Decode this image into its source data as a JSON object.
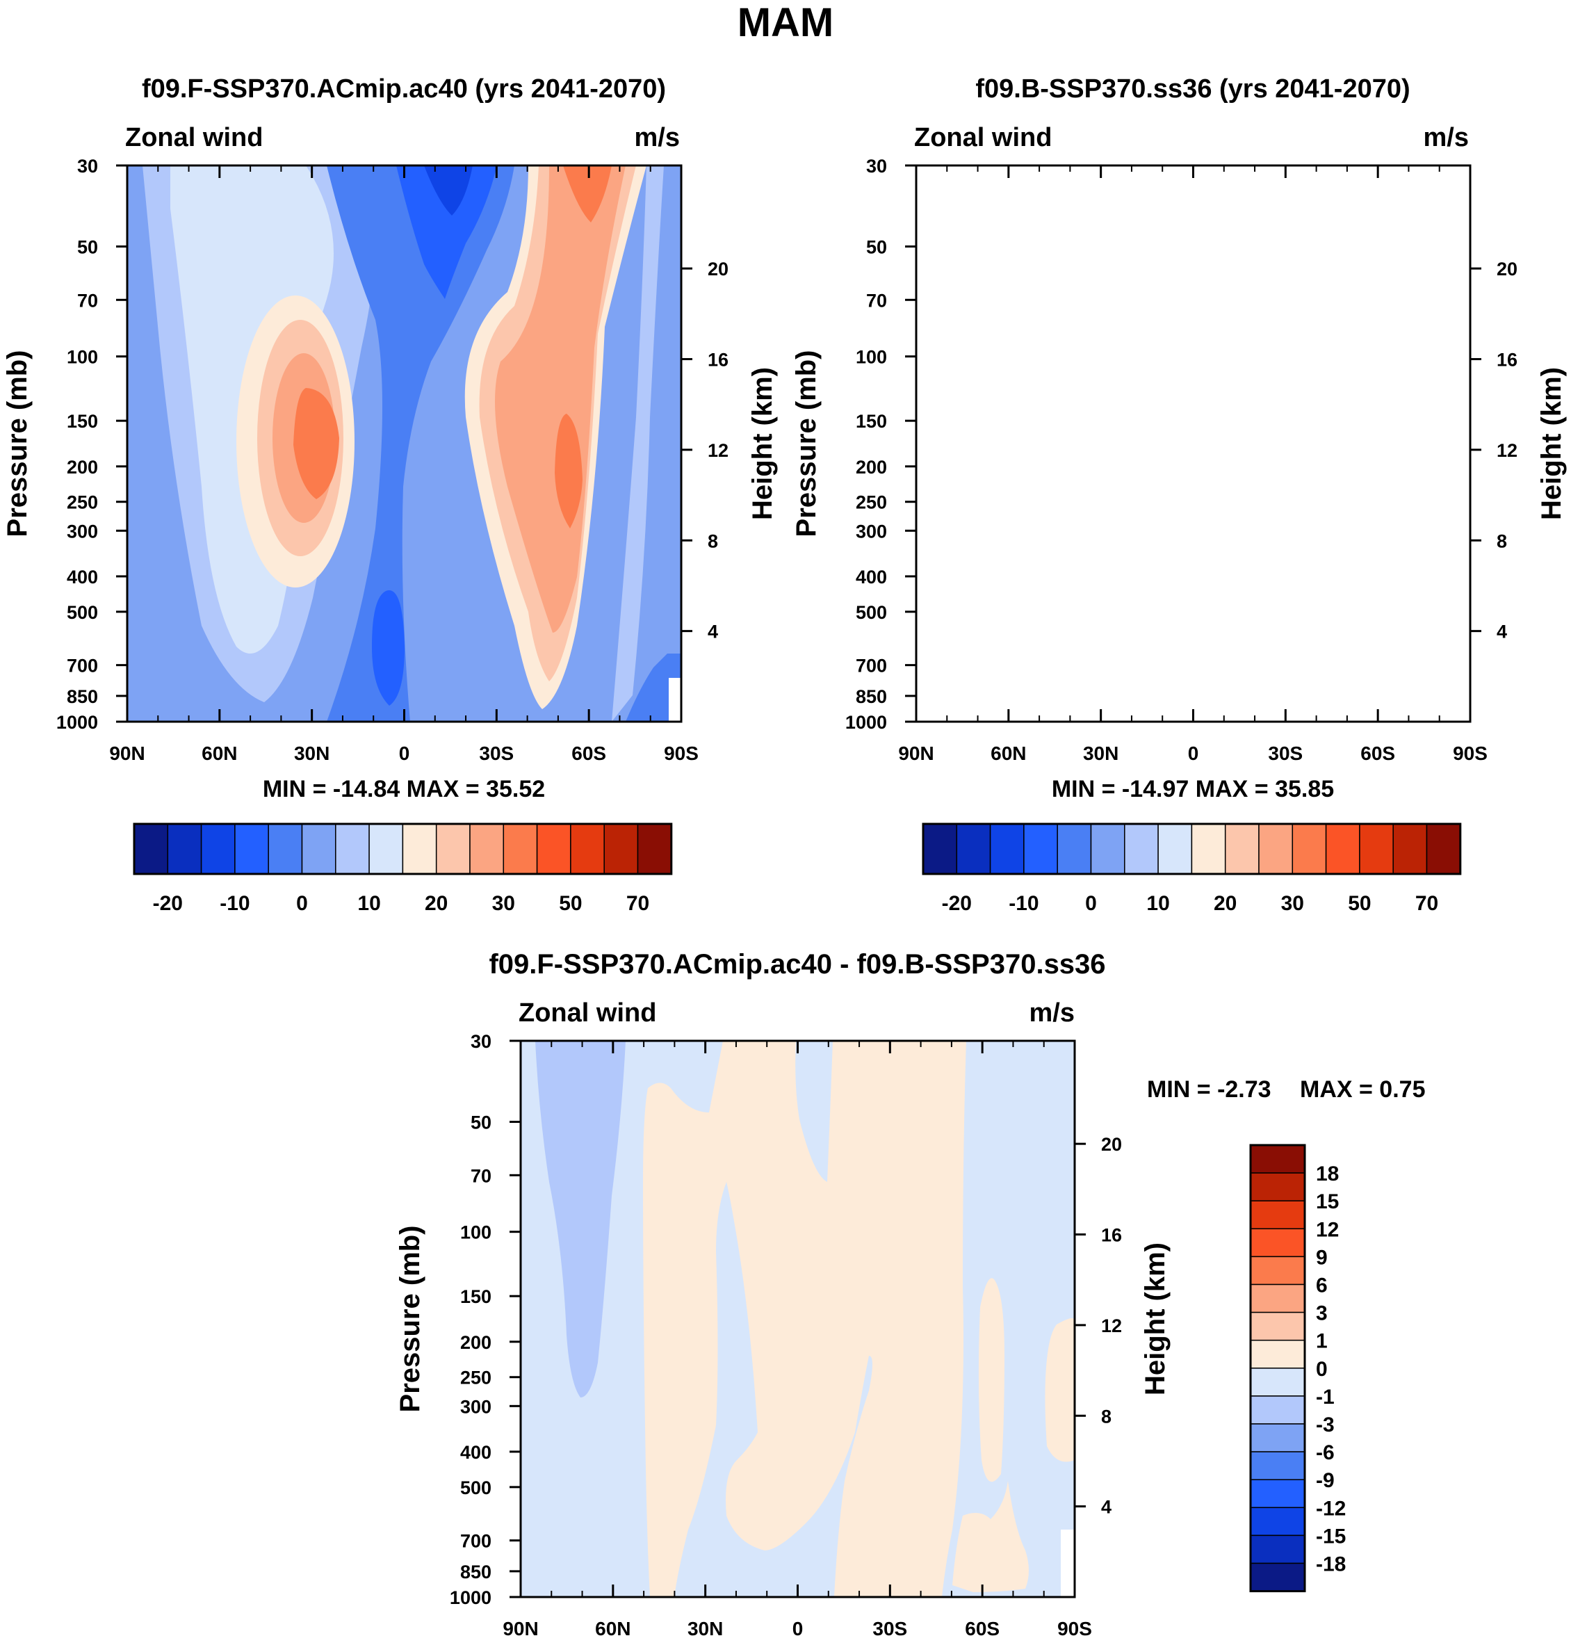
{
  "figure_title": "MAM",
  "colors": {
    "wind_palette": [
      "#0b1a86",
      "#0a2fbf",
      "#0f44e6",
      "#2360ff",
      "#4a7ff4",
      "#7ea3f4",
      "#b2c8fb",
      "#d7e6fb",
      "#fdebd9",
      "#fcc6ac",
      "#fba582",
      "#fb7b4c",
      "#fb5426",
      "#e53b10",
      "#bb2305",
      "#8a0e04"
    ],
    "diff_palette": [
      "#0b1a86",
      "#0a2fbf",
      "#0f44e6",
      "#2360ff",
      "#4a7ff4",
      "#7ea3f4",
      "#b2c8fb",
      "#d7e6fb",
      "#fdebd9",
      "#fcc6ac",
      "#fba582",
      "#fb7b4c",
      "#fb5426",
      "#e53b10",
      "#bb2305",
      "#8a0e04"
    ]
  },
  "chart_data": [
    {
      "type": "contour",
      "title": "f09.F-SSP370.ACmip.ac40 (yrs 2041-2070)",
      "left_label": "Zonal wind",
      "right_label": "m/s",
      "ylabel": "Pressure (mb)",
      "ylabel_right": "Height (km)",
      "x_ticks": [
        "90N",
        "60N",
        "30N",
        "0",
        "30S",
        "60S",
        "90S"
      ],
      "y_ticks": [
        "30",
        "50",
        "70",
        "100",
        "150",
        "200",
        "250",
        "300",
        "400",
        "500",
        "700",
        "850",
        "1000"
      ],
      "y_right_ticks": [
        "20",
        "16",
        "12",
        "8",
        "4"
      ],
      "ylim": [
        1000,
        30
      ],
      "stats": {
        "min": "MIN = -14.84",
        "max": "MAX =  35.52"
      },
      "colorbar_labels": [
        "-20",
        "-10",
        "0",
        "10",
        "20",
        "30",
        "50",
        "70"
      ],
      "zmin": -14.84,
      "zmax": 35.52
    },
    {
      "type": "contour",
      "title": "f09.B-SSP370.ss36 (yrs 2041-2070)",
      "left_label": "Zonal wind",
      "right_label": "m/s",
      "ylabel": "Pressure (mb)",
      "ylabel_right": "Height (km)",
      "x_ticks": [
        "90N",
        "60N",
        "30N",
        "0",
        "30S",
        "60S",
        "90S"
      ],
      "y_ticks": [
        "30",
        "50",
        "70",
        "100",
        "150",
        "200",
        "250",
        "300",
        "400",
        "500",
        "700",
        "850",
        "1000"
      ],
      "y_right_ticks": [
        "20",
        "16",
        "12",
        "8",
        "4"
      ],
      "ylim": [
        1000,
        30
      ],
      "stats": {
        "min": "MIN = -14.97",
        "max": "MAX =  35.85"
      },
      "colorbar_labels": [
        "-20",
        "-10",
        "0",
        "10",
        "20",
        "30",
        "50",
        "70"
      ],
      "zmin": -14.97,
      "zmax": 35.85
    },
    {
      "type": "contour",
      "title": "f09.F-SSP370.ACmip.ac40 - f09.B-SSP370.ss36",
      "left_label": "Zonal wind",
      "right_label": "m/s",
      "ylabel": "Pressure (mb)",
      "ylabel_right": "Height (km)",
      "x_ticks": [
        "90N",
        "60N",
        "30N",
        "0",
        "30S",
        "60S",
        "90S"
      ],
      "y_ticks": [
        "30",
        "50",
        "70",
        "100",
        "150",
        "200",
        "250",
        "300",
        "400",
        "500",
        "700",
        "850",
        "1000"
      ],
      "y_right_ticks": [
        "20",
        "16",
        "12",
        "8",
        "4"
      ],
      "ylim": [
        1000,
        30
      ],
      "stats": {
        "min": "MIN =  -2.73",
        "max": "MAX =    0.75"
      },
      "colorbar_labels": [
        "18",
        "15",
        "12",
        "9",
        "6",
        "3",
        "1",
        "0",
        "-1",
        "-3",
        "-6",
        "-9",
        "-12",
        "-15",
        "-18"
      ],
      "zmin": -2.73,
      "zmax": 0.75
    }
  ]
}
